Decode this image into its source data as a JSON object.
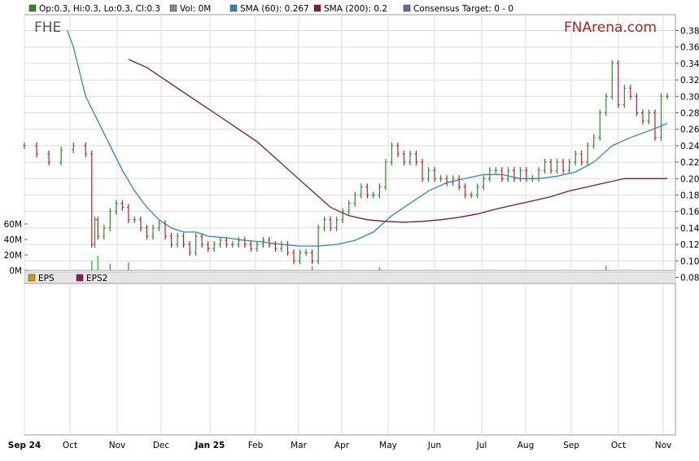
{
  "legend_top": {
    "items": [
      {
        "label": "Op:0.3, Hi:0.3, Lo:0.3, Cl:0.3",
        "color": "#2e8b22"
      },
      {
        "label": "Vol: 0M",
        "color": "#888888"
      },
      {
        "label": "SMA (60): 0.267",
        "color": "#2e86c1"
      },
      {
        "label": "SMA (200): 0.2",
        "color": "#8b1a2b"
      },
      {
        "label": "Consensus Target: 0 - 0",
        "color": "#6b6b9a"
      }
    ]
  },
  "legend_bottom": {
    "items": [
      {
        "label": "EPS",
        "color": "#c8a000"
      },
      {
        "label": "EPS2",
        "color": "#8b1a5a"
      }
    ]
  },
  "ticker": "FHE",
  "brand": "FNArena.com",
  "colors": {
    "up": "#2e8b22",
    "down": "#c0192b",
    "sma60": "#2e86c1",
    "sma200": "#7b1a35",
    "grid": "#dcdcdc",
    "volume": "#33cc33"
  },
  "chart_data": {
    "type": "line",
    "title": "",
    "ylim": [
      0.08,
      0.39
    ],
    "y_ticks": [
      "0.38",
      "0.36",
      "0.34",
      "0.32",
      "0.30",
      "0.28",
      "0.26",
      "0.24",
      "0.22",
      "0.20",
      "0.18",
      "0.16",
      "0.14",
      "0.12",
      "0.10",
      "0.08"
    ],
    "x_ticks": [
      {
        "label": "Sep 24",
        "bold": true
      },
      {
        "label": "Oct",
        "bold": false
      },
      {
        "label": "Nov",
        "bold": false
      },
      {
        "label": "Dec",
        "bold": false
      },
      {
        "label": "Jan 25",
        "bold": true
      },
      {
        "label": "Feb",
        "bold": false
      },
      {
        "label": "Mar",
        "bold": false
      },
      {
        "label": "Apr",
        "bold": false
      },
      {
        "label": "May",
        "bold": false
      },
      {
        "label": "Jun",
        "bold": false
      },
      {
        "label": "Jul",
        "bold": false
      },
      {
        "label": "Aug",
        "bold": false
      },
      {
        "label": "Sep",
        "bold": false
      },
      {
        "label": "Oct",
        "bold": false
      },
      {
        "label": "Nov",
        "bold": false
      }
    ],
    "volume_ticks": [
      "60M",
      "40M",
      "20M",
      "0M"
    ],
    "close": [
      [
        0,
        0.24
      ],
      [
        2,
        0.23
      ],
      [
        4,
        0.22
      ],
      [
        6,
        0.235
      ],
      [
        8,
        0.24
      ],
      [
        10,
        0.23
      ],
      [
        11,
        0.12
      ],
      [
        11.5,
        0.15
      ],
      [
        12,
        0.13
      ],
      [
        13,
        0.14
      ],
      [
        14,
        0.16
      ],
      [
        15,
        0.17
      ],
      [
        16,
        0.165
      ],
      [
        17,
        0.15
      ],
      [
        18,
        0.15
      ],
      [
        19,
        0.14
      ],
      [
        20,
        0.13
      ],
      [
        21,
        0.14
      ],
      [
        22,
        0.145
      ],
      [
        23,
        0.13
      ],
      [
        24,
        0.12
      ],
      [
        25,
        0.13
      ],
      [
        26,
        0.12
      ],
      [
        27,
        0.11
      ],
      [
        28,
        0.13
      ],
      [
        29,
        0.12
      ],
      [
        30,
        0.115
      ],
      [
        31,
        0.12
      ],
      [
        32,
        0.125
      ],
      [
        33,
        0.12
      ],
      [
        34,
        0.12
      ],
      [
        35,
        0.125
      ],
      [
        36,
        0.12
      ],
      [
        37,
        0.115
      ],
      [
        38,
        0.12
      ],
      [
        39,
        0.125
      ],
      [
        40,
        0.12
      ],
      [
        41,
        0.115
      ],
      [
        42,
        0.12
      ],
      [
        43,
        0.11
      ],
      [
        44,
        0.1
      ],
      [
        45,
        0.11
      ],
      [
        46,
        0.11
      ],
      [
        47,
        0.1
      ],
      [
        48,
        0.14
      ],
      [
        49,
        0.15
      ],
      [
        50,
        0.14
      ],
      [
        51,
        0.15
      ],
      [
        52,
        0.16
      ],
      [
        53,
        0.17
      ],
      [
        54,
        0.18
      ],
      [
        55,
        0.19
      ],
      [
        56,
        0.18
      ],
      [
        57,
        0.18
      ],
      [
        58,
        0.19
      ],
      [
        59,
        0.22
      ],
      [
        60,
        0.24
      ],
      [
        61,
        0.23
      ],
      [
        62,
        0.22
      ],
      [
        63,
        0.23
      ],
      [
        64,
        0.22
      ],
      [
        65,
        0.2
      ],
      [
        66,
        0.21
      ],
      [
        67,
        0.2
      ],
      [
        68,
        0.2
      ],
      [
        69,
        0.195
      ],
      [
        70,
        0.2
      ],
      [
        71,
        0.19
      ],
      [
        72,
        0.18
      ],
      [
        73,
        0.18
      ],
      [
        74,
        0.19
      ],
      [
        75,
        0.2
      ],
      [
        76,
        0.21
      ],
      [
        77,
        0.21
      ],
      [
        78,
        0.2
      ],
      [
        79,
        0.21
      ],
      [
        80,
        0.2
      ],
      [
        81,
        0.21
      ],
      [
        82,
        0.2
      ],
      [
        83,
        0.2
      ],
      [
        84,
        0.21
      ],
      [
        85,
        0.22
      ],
      [
        86,
        0.21
      ],
      [
        87,
        0.22
      ],
      [
        88,
        0.21
      ],
      [
        89,
        0.22
      ],
      [
        90,
        0.23
      ],
      [
        91,
        0.22
      ],
      [
        92,
        0.24
      ],
      [
        93,
        0.25
      ],
      [
        94,
        0.28
      ],
      [
        95,
        0.3
      ],
      [
        96,
        0.34
      ],
      [
        97,
        0.29
      ],
      [
        98,
        0.31
      ],
      [
        99,
        0.3
      ],
      [
        100,
        0.28
      ],
      [
        101,
        0.27
      ],
      [
        102,
        0.28
      ],
      [
        103,
        0.25
      ],
      [
        104,
        0.3
      ],
      [
        105,
        0.3
      ]
    ],
    "sma60": [
      [
        7,
        0.38
      ],
      [
        8,
        0.36
      ],
      [
        9,
        0.33
      ],
      [
        10,
        0.3
      ],
      [
        12,
        0.27
      ],
      [
        14,
        0.24
      ],
      [
        16,
        0.21
      ],
      [
        18,
        0.185
      ],
      [
        20,
        0.165
      ],
      [
        22,
        0.15
      ],
      [
        24,
        0.14
      ],
      [
        26,
        0.135
      ],
      [
        28,
        0.135
      ],
      [
        30,
        0.13
      ],
      [
        33,
        0.128
      ],
      [
        36,
        0.125
      ],
      [
        39,
        0.123
      ],
      [
        42,
        0.12
      ],
      [
        45,
        0.118
      ],
      [
        48,
        0.118
      ],
      [
        51,
        0.12
      ],
      [
        54,
        0.125
      ],
      [
        57,
        0.135
      ],
      [
        60,
        0.155
      ],
      [
        63,
        0.17
      ],
      [
        66,
        0.185
      ],
      [
        69,
        0.195
      ],
      [
        72,
        0.2
      ],
      [
        75,
        0.205
      ],
      [
        78,
        0.205
      ],
      [
        81,
        0.2
      ],
      [
        84,
        0.2
      ],
      [
        87,
        0.203
      ],
      [
        90,
        0.208
      ],
      [
        93,
        0.22
      ],
      [
        96,
        0.24
      ],
      [
        99,
        0.25
      ],
      [
        102,
        0.258
      ],
      [
        105,
        0.267
      ]
    ],
    "sma200": [
      [
        17,
        0.345
      ],
      [
        20,
        0.335
      ],
      [
        23,
        0.32
      ],
      [
        26,
        0.305
      ],
      [
        29,
        0.29
      ],
      [
        32,
        0.275
      ],
      [
        35,
        0.26
      ],
      [
        38,
        0.245
      ],
      [
        41,
        0.225
      ],
      [
        44,
        0.205
      ],
      [
        47,
        0.185
      ],
      [
        50,
        0.165
      ],
      [
        53,
        0.155
      ],
      [
        56,
        0.15
      ],
      [
        59,
        0.148
      ],
      [
        62,
        0.147
      ],
      [
        65,
        0.148
      ],
      [
        68,
        0.15
      ],
      [
        71,
        0.153
      ],
      [
        74,
        0.157
      ],
      [
        77,
        0.163
      ],
      [
        80,
        0.168
      ],
      [
        83,
        0.173
      ],
      [
        86,
        0.178
      ],
      [
        89,
        0.185
      ],
      [
        92,
        0.19
      ],
      [
        95,
        0.195
      ],
      [
        98,
        0.2
      ],
      [
        101,
        0.2
      ],
      [
        105,
        0.2
      ]
    ]
  }
}
